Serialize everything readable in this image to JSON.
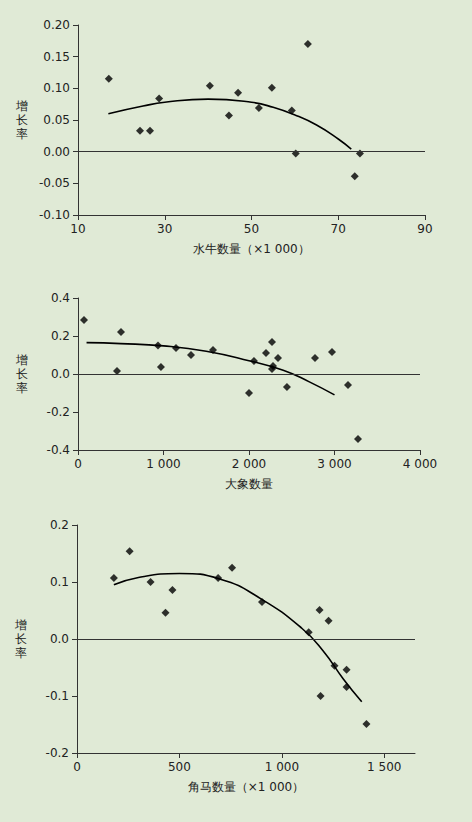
{
  "chart_data": [
    {
      "type": "scatter",
      "x_label": "水牛数量（×1 000）",
      "y_label": "增长率",
      "xlim": [
        10,
        90
      ],
      "ylim": [
        -0.1,
        0.2
      ],
      "xticks": [
        10,
        30,
        50,
        70,
        90
      ],
      "yticks": [
        {
          "value": -0.1,
          "label": "-0.10"
        },
        {
          "value": -0.05,
          "label": "-0.05"
        },
        {
          "value": 0,
          "label": "0.00"
        },
        {
          "value": 0.05,
          "label": "0.05"
        },
        {
          "value": 0.1,
          "label": "0.10"
        },
        {
          "value": 0.15,
          "label": "0.15"
        },
        {
          "value": 0.2,
          "label": "0.20"
        }
      ],
      "grid": false,
      "series": [
        {
          "type": "scatter",
          "marker": "diamond",
          "color": "#000000",
          "x": [
            17.1,
            24.3,
            26.6,
            28.7,
            40.4,
            44.8,
            46.9,
            51.7,
            54.7,
            59.3,
            60.2,
            63.0,
            73.8,
            75.0
          ],
          "values": [
            0.115,
            0.033,
            0.033,
            0.084,
            0.104,
            0.057,
            0.093,
            0.069,
            0.101,
            0.065,
            -0.003,
            0.17,
            -0.039,
            -0.003
          ]
        },
        {
          "type": "line",
          "line_style": "solid",
          "color": "#000000",
          "x": [
            17,
            25,
            30,
            40,
            50,
            55,
            60,
            65,
            70,
            73
          ],
          "values": [
            0.06,
            0.072,
            0.078,
            0.083,
            0.078,
            0.07,
            0.058,
            0.042,
            0.02,
            0.004
          ]
        }
      ]
    },
    {
      "type": "scatter",
      "x_label": "大象数量",
      "y_label": "增长率",
      "xlim": [
        0,
        4000
      ],
      "ylim": [
        -0.4,
        0.4
      ],
      "xticks": [
        0,
        {
          "value": 1000,
          "label": "1 000"
        },
        {
          "value": 2000,
          "label": "2 000"
        },
        {
          "value": 3000,
          "label": "3 000"
        },
        {
          "value": 4000,
          "label": "4 000"
        }
      ],
      "yticks": [
        -0.4,
        -0.2,
        {
          "value": 0,
          "label": "0.0"
        },
        0.2,
        0.4
      ],
      "grid": false,
      "series": [
        {
          "type": "scatter",
          "marker": "diamond",
          "color": "#000000",
          "x": [
            70,
            503,
            456,
            936,
            970,
            1146,
            1322,
            1579,
            2000,
            2058,
            2199,
            2269,
            2281,
            2269,
            2339,
            2444,
            2772,
            2971,
            3158,
            3275
          ],
          "values": [
            0.284,
            0.221,
            0.016,
            0.15,
            0.037,
            0.137,
            0.1,
            0.126,
            -0.1,
            0.068,
            0.11,
            0.168,
            0.042,
            0.026,
            0.084,
            -0.068,
            0.084,
            0.116,
            -0.058,
            -0.342
          ]
        },
        {
          "type": "line",
          "line_style": "solid",
          "color": "#000000",
          "x": [
            100,
            500,
            1000,
            1500,
            2000,
            2400,
            2700,
            3000
          ],
          "values": [
            0.165,
            0.16,
            0.148,
            0.12,
            0.07,
            0.02,
            -0.04,
            -0.11
          ]
        }
      ]
    },
    {
      "type": "scatter",
      "x_label": "角马数量（×1 000）",
      "y_label": "增长率",
      "xlim": [
        0,
        1650
      ],
      "ylim": [
        -0.2,
        0.2
      ],
      "xticks": [
        0,
        500,
        {
          "value": 1000,
          "label": "1 000"
        },
        {
          "value": 1500,
          "label": "1 500"
        }
      ],
      "yticks": [
        -0.2,
        -0.1,
        {
          "value": 0,
          "label": "0.0"
        },
        0.1,
        0.2
      ],
      "grid": false,
      "series": [
        {
          "type": "scatter",
          "marker": "diamond",
          "color": "#000000",
          "x": [
            180,
            257,
            359,
            432,
            466,
            689,
            757,
            903,
            1131,
            1184,
            1228,
            1189,
            1257,
            1316,
            1316,
            1413
          ],
          "values": [
            0.107,
            0.154,
            0.1,
            0.046,
            0.086,
            0.107,
            0.125,
            0.065,
            0.012,
            0.051,
            0.032,
            -0.1,
            -0.047,
            -0.054,
            -0.084,
            -0.149
          ]
        },
        {
          "type": "line",
          "line_style": "solid",
          "color": "#000000",
          "x": [
            180,
            300,
            500,
            700,
            900,
            1100,
            1200,
            1300,
            1390
          ],
          "values": [
            0.095,
            0.108,
            0.115,
            0.105,
            0.07,
            0.018,
            -0.02,
            -0.07,
            -0.11
          ]
        }
      ]
    }
  ]
}
